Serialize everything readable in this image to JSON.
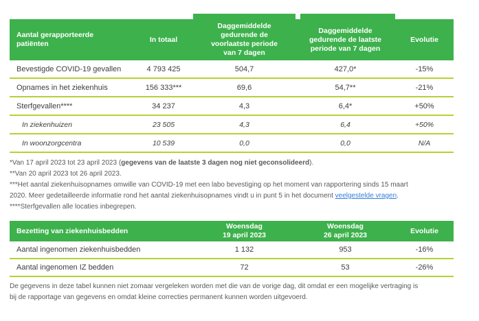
{
  "colors": {
    "header_green": "#3db14c",
    "separator_green": "#b2d233",
    "link_blue": "#2f7ed8"
  },
  "table1": {
    "columns": [
      "Aantal gerapporteerde\npatiënten",
      "In totaal",
      "Daggemiddelde\ngedurende de\nvoorlaatste periode\nvan 7 dagen",
      "Daggemiddelde\ngedurende de laatste\nperiode van 7 dagen",
      "Evolutie"
    ],
    "rows": [
      {
        "label": "Bevestigde COVID-19 gevallen",
        "total": "4 793 425",
        "prev_avg": "504,7",
        "last_avg": "427,0*",
        "evolution": "-15%"
      },
      {
        "label": "Opnames in het ziekenhuis",
        "total": "156 333***",
        "prev_avg": "69,6",
        "last_avg": "54,7**",
        "evolution": "-21%"
      },
      {
        "label": "Sterfgevallen****",
        "total": "34 237",
        "prev_avg": "4,3",
        "last_avg": "6,4*",
        "evolution": "+50%"
      },
      {
        "label": "In ziekenhuizen",
        "total": "23 505",
        "prev_avg": "4,3",
        "last_avg": "6,4",
        "evolution": "+50%"
      },
      {
        "label": "In woonzorgcentra",
        "total": "10 539",
        "prev_avg": "0,0",
        "last_avg": "0,0",
        "evolution": "N/A"
      }
    ]
  },
  "footnotes": {
    "note1_prefix": "*Van 17 april 2023 tot 23 april 2023 (",
    "note1_bold": "gegevens van de laatste 3 dagen nog niet geconsolideerd",
    "note1_suffix": ").",
    "note2": "**Van 20 april 2023 tot 26 april 2023.",
    "note3_prefix": "***Het aantal ziekenhuisopnames omwille van COVID-19 met een labo bevestiging op het moment van rapportering sinds 15 maart\n2020. Meer gedetailleerde informatie rond het aantal ziekenhuisopnames vindt u in punt 5 in het document ",
    "note3_link": "veelgestelde vragen",
    "note3_suffix": ".",
    "note4": "****Sterfgevallen alle locaties inbegrepen."
  },
  "table2": {
    "columns": [
      "Bezetting van ziekenhuisbedden",
      "Woensdag\n19 april 2023",
      "Woensdag\n26 april 2023",
      "Evolutie"
    ],
    "rows": [
      {
        "label": "Aantal ingenomen ziekenhuisbedden",
        "wed1": "1 132",
        "wed2": "953",
        "evolution": "-16%"
      },
      {
        "label": "Aantal ingenomen IZ bedden",
        "wed1": "72",
        "wed2": "53",
        "evolution": "-26%"
      }
    ]
  },
  "disclaimer": "De gegevens in deze tabel kunnen niet zomaar vergeleken worden met die van de vorige dag, dit omdat er een mogelijke vertraging is\nbij de rapportage van gegevens en omdat kleine correcties permanent kunnen worden uitgevoerd."
}
